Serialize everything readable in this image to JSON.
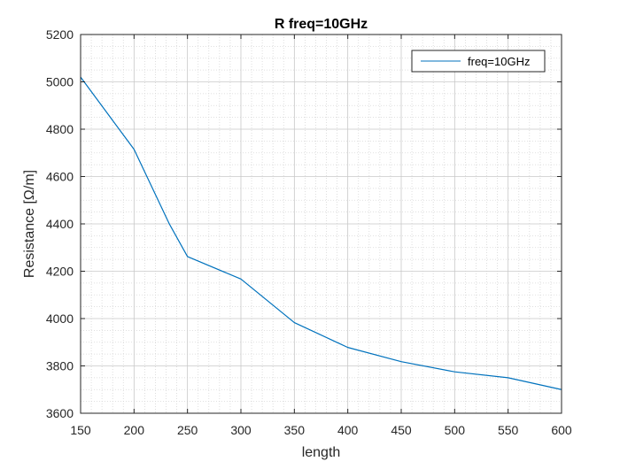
{
  "chart_data": {
    "type": "line",
    "title": "R freq=10GHz",
    "xlabel": "length",
    "ylabel": "Resistance [Ω/m]",
    "xlim": [
      150,
      600
    ],
    "ylim": [
      3600,
      5200
    ],
    "xticks": [
      150,
      200,
      250,
      300,
      350,
      400,
      450,
      500,
      550,
      600
    ],
    "yticks": [
      3600,
      3800,
      4000,
      4200,
      4400,
      4600,
      4800,
      5000,
      5200
    ],
    "xtick_labels": [
      "150",
      "200",
      "250",
      "300",
      "350",
      "400",
      "450",
      "500",
      "550",
      "600"
    ],
    "ytick_labels": [
      "3600",
      "3800",
      "4000",
      "4200",
      "4400",
      "4600",
      "4800",
      "5000",
      "5200"
    ],
    "grid": true,
    "minor_grid": true,
    "legend_position": "top-right",
    "series": [
      {
        "name": "freq=10GHz",
        "color": "#0072BD",
        "x": [
          150,
          200,
          233,
          250,
          300,
          350,
          400,
          450,
          500,
          550,
          600
        ],
        "y": [
          5020,
          4715,
          4400,
          4262,
          4167,
          3983,
          3878,
          3818,
          3775,
          3750,
          3700
        ]
      }
    ]
  }
}
